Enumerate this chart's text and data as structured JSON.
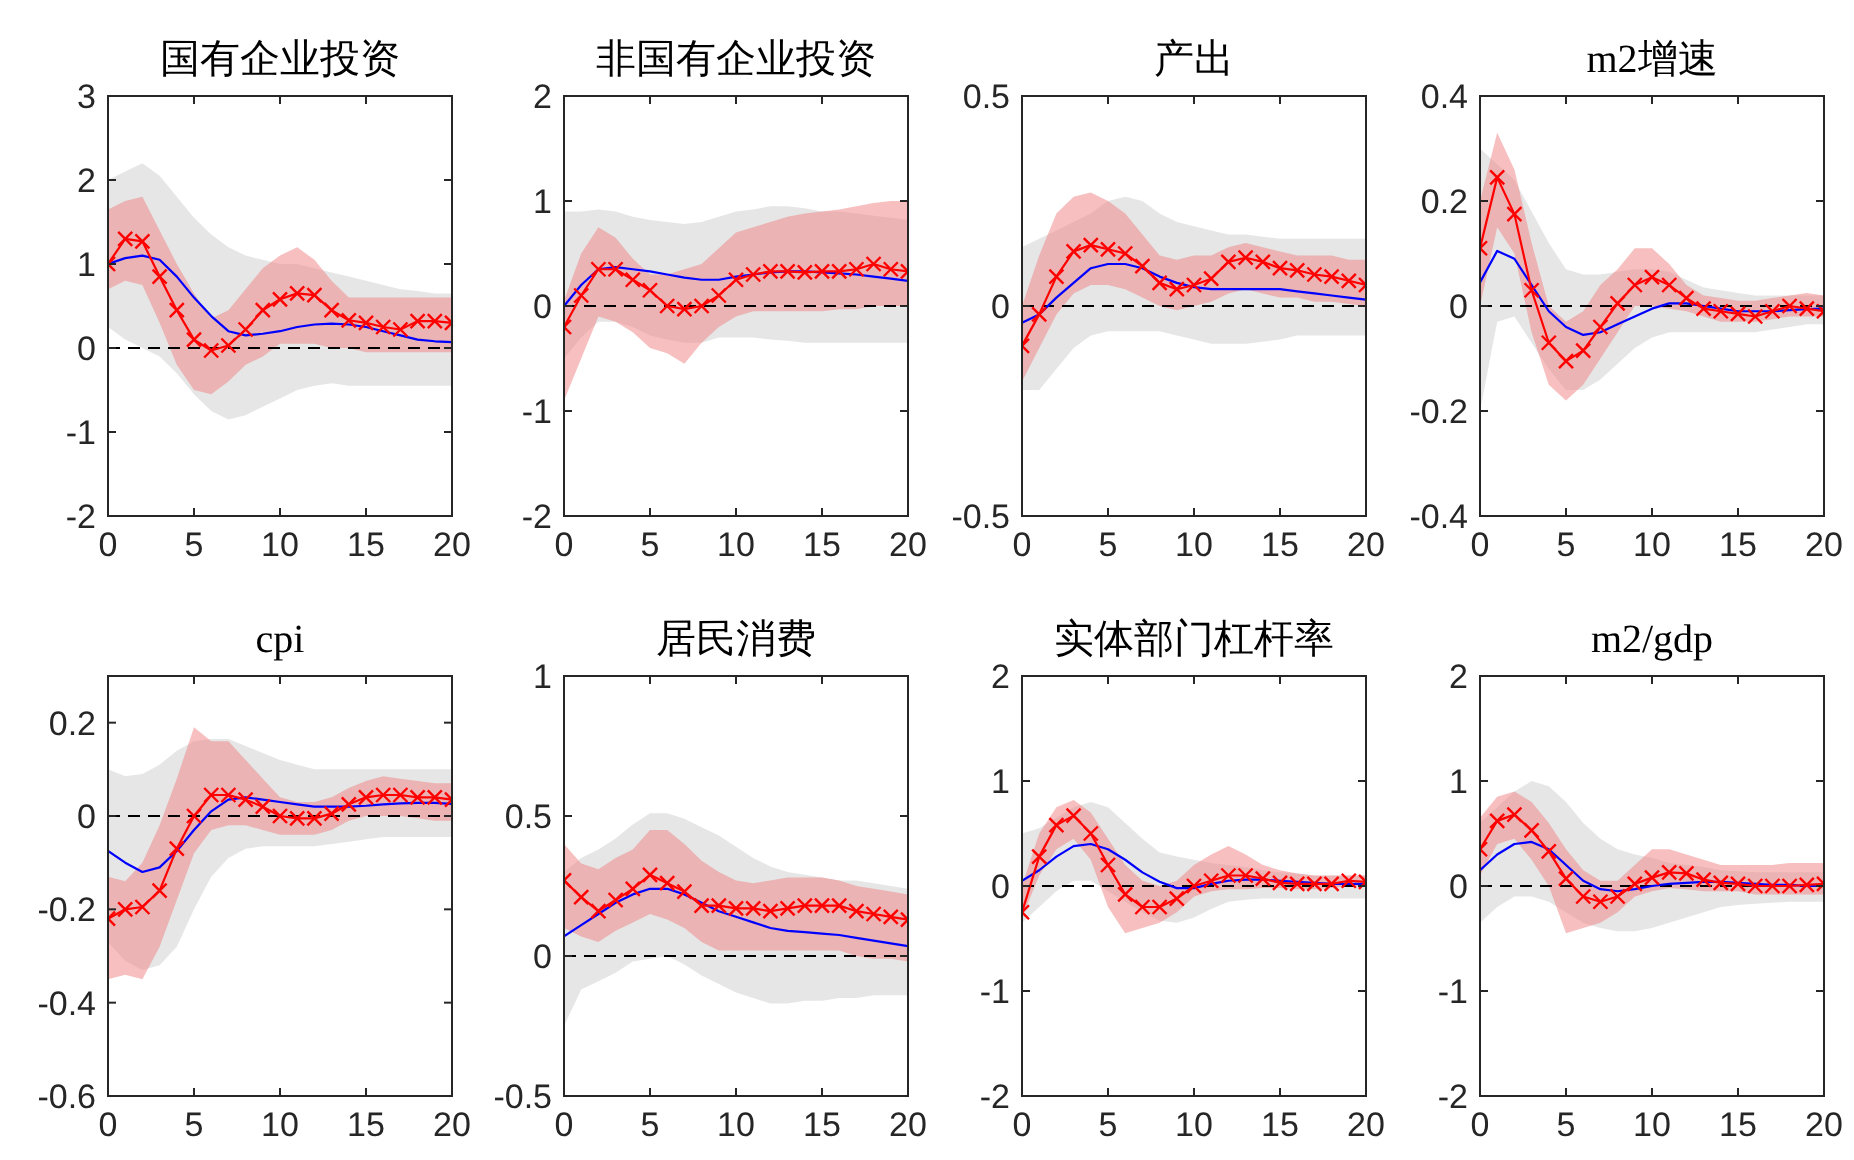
{
  "chart_data": [
    {
      "type": "line",
      "title": "国有企业投资",
      "x": [
        0,
        1,
        2,
        3,
        4,
        5,
        6,
        7,
        8,
        9,
        10,
        11,
        12,
        13,
        14,
        15,
        16,
        17,
        18,
        19,
        20
      ],
      "xlim": [
        0,
        20
      ],
      "xticks": [
        0,
        5,
        10,
        15,
        20
      ],
      "ylim": [
        -2,
        3
      ],
      "yticks": [
        -2,
        -1,
        0,
        1,
        2,
        3
      ],
      "grid": false,
      "ref_lines": [
        {
          "axis": "y",
          "value": 0,
          "color": "#000000",
          "line_style": "dashed"
        }
      ],
      "series": [
        {
          "color": "#0000ff",
          "marker": "none",
          "values": [
            1.0,
            1.07,
            1.1,
            1.05,
            0.85,
            0.6,
            0.38,
            0.2,
            0.15,
            0.17,
            0.2,
            0.25,
            0.28,
            0.29,
            0.28,
            0.25,
            0.2,
            0.15,
            0.1,
            0.08,
            0.07
          ],
          "upper": [
            2.0,
            2.1,
            2.2,
            2.05,
            1.8,
            1.55,
            1.35,
            1.2,
            1.1,
            1.05,
            1.0,
            1.0,
            0.95,
            0.9,
            0.85,
            0.8,
            0.75,
            0.7,
            0.68,
            0.65,
            0.65
          ],
          "lower": [
            0.25,
            0.1,
            0.0,
            -0.1,
            -0.3,
            -0.55,
            -0.75,
            -0.85,
            -0.8,
            -0.7,
            -0.6,
            -0.5,
            -0.45,
            -0.42,
            -0.45,
            -0.45,
            -0.45,
            -0.45,
            -0.45,
            -0.45,
            -0.45
          ]
        },
        {
          "color": "#ff0000",
          "marker": "cross",
          "values": [
            1.0,
            1.3,
            1.27,
            0.85,
            0.45,
            0.1,
            -0.03,
            0.03,
            0.22,
            0.45,
            0.58,
            0.65,
            0.63,
            0.45,
            0.33,
            0.3,
            0.25,
            0.22,
            0.32,
            0.32,
            0.3
          ],
          "upper": [
            1.65,
            1.75,
            1.8,
            1.4,
            1.0,
            0.65,
            0.35,
            0.45,
            0.7,
            0.95,
            1.1,
            1.2,
            1.05,
            0.8,
            0.6,
            0.6,
            0.6,
            0.6,
            0.6,
            0.6,
            0.6
          ],
          "lower": [
            0.7,
            0.8,
            0.75,
            0.3,
            -0.2,
            -0.5,
            -0.55,
            -0.4,
            -0.2,
            -0.1,
            0.05,
            0.05,
            0.05,
            0.0,
            0.0,
            -0.05,
            -0.05,
            -0.05,
            -0.05,
            -0.05,
            -0.05
          ]
        }
      ]
    },
    {
      "type": "line",
      "title": "非国有企业投资",
      "x": [
        0,
        1,
        2,
        3,
        4,
        5,
        6,
        7,
        8,
        9,
        10,
        11,
        12,
        13,
        14,
        15,
        16,
        17,
        18,
        19,
        20
      ],
      "xlim": [
        0,
        20
      ],
      "xticks": [
        0,
        5,
        10,
        15,
        20
      ],
      "ylim": [
        -2,
        2
      ],
      "yticks": [
        -2,
        -1,
        0,
        1,
        2
      ],
      "grid": false,
      "ref_lines": [
        {
          "axis": "y",
          "value": 0,
          "color": "#000000",
          "line_style": "dashed"
        }
      ],
      "series": [
        {
          "color": "#0000ff",
          "marker": "none",
          "values": [
            0.0,
            0.2,
            0.35,
            0.37,
            0.35,
            0.33,
            0.3,
            0.27,
            0.25,
            0.25,
            0.28,
            0.3,
            0.32,
            0.33,
            0.33,
            0.32,
            0.31,
            0.3,
            0.28,
            0.26,
            0.24
          ],
          "upper": [
            0.9,
            0.9,
            0.92,
            0.9,
            0.85,
            0.82,
            0.8,
            0.78,
            0.8,
            0.85,
            0.9,
            0.92,
            0.95,
            0.95,
            0.93,
            0.9,
            0.9,
            0.88,
            0.86,
            0.84,
            0.82
          ],
          "lower": [
            -0.5,
            -0.3,
            -0.15,
            -0.15,
            -0.2,
            -0.28,
            -0.32,
            -0.35,
            -0.35,
            -0.3,
            -0.3,
            -0.3,
            -0.32,
            -0.33,
            -0.35,
            -0.35,
            -0.35,
            -0.35,
            -0.35,
            -0.35,
            -0.35
          ]
        },
        {
          "color": "#ff0000",
          "marker": "cross",
          "values": [
            -0.2,
            0.1,
            0.35,
            0.35,
            0.25,
            0.15,
            0.0,
            -0.03,
            0.0,
            0.1,
            0.25,
            0.3,
            0.33,
            0.33,
            0.32,
            0.33,
            0.33,
            0.35,
            0.4,
            0.35,
            0.33
          ],
          "upper": [
            0.05,
            0.5,
            0.75,
            0.65,
            0.45,
            0.3,
            0.3,
            0.35,
            0.4,
            0.55,
            0.7,
            0.75,
            0.8,
            0.85,
            0.88,
            0.9,
            0.92,
            0.95,
            0.98,
            1.0,
            1.0
          ],
          "lower": [
            -0.9,
            -0.5,
            -0.1,
            -0.15,
            -0.25,
            -0.4,
            -0.45,
            -0.55,
            -0.35,
            -0.2,
            -0.1,
            -0.05,
            -0.05,
            -0.05,
            -0.05,
            -0.05,
            -0.03,
            -0.03,
            0.0,
            0.0,
            0.0
          ]
        }
      ]
    },
    {
      "type": "line",
      "title": "产出",
      "x": [
        0,
        1,
        2,
        3,
        4,
        5,
        6,
        7,
        8,
        9,
        10,
        11,
        12,
        13,
        14,
        15,
        16,
        17,
        18,
        19,
        20
      ],
      "xlim": [
        0,
        20
      ],
      "xticks": [
        0,
        5,
        10,
        15,
        20
      ],
      "ylim": [
        -0.5,
        0.5
      ],
      "yticks": [
        -0.5,
        0,
        0.5
      ],
      "grid": false,
      "ref_lines": [
        {
          "axis": "y",
          "value": 0,
          "color": "#000000",
          "line_style": "dashed"
        }
      ],
      "series": [
        {
          "color": "#0000ff",
          "marker": "none",
          "values": [
            -0.04,
            -0.02,
            0.02,
            0.055,
            0.09,
            0.1,
            0.1,
            0.09,
            0.07,
            0.055,
            0.045,
            0.04,
            0.04,
            0.04,
            0.04,
            0.04,
            0.035,
            0.03,
            0.025,
            0.02,
            0.015
          ],
          "upper": [
            0.14,
            0.16,
            0.18,
            0.2,
            0.22,
            0.25,
            0.26,
            0.25,
            0.22,
            0.2,
            0.19,
            0.18,
            0.17,
            0.17,
            0.165,
            0.16,
            0.16,
            0.16,
            0.16,
            0.16,
            0.16
          ],
          "lower": [
            -0.2,
            -0.2,
            -0.15,
            -0.1,
            -0.07,
            -0.06,
            -0.06,
            -0.06,
            -0.06,
            -0.07,
            -0.08,
            -0.09,
            -0.09,
            -0.09,
            -0.085,
            -0.08,
            -0.07,
            -0.07,
            -0.07,
            -0.07,
            -0.07
          ]
        },
        {
          "color": "#ff0000",
          "marker": "cross",
          "values": [
            -0.095,
            -0.02,
            0.07,
            0.13,
            0.145,
            0.135,
            0.125,
            0.095,
            0.055,
            0.04,
            0.05,
            0.065,
            0.105,
            0.115,
            0.105,
            0.09,
            0.085,
            0.075,
            0.07,
            0.06,
            0.05
          ],
          "upper": [
            0.0,
            0.12,
            0.22,
            0.26,
            0.27,
            0.25,
            0.22,
            0.17,
            0.12,
            0.11,
            0.12,
            0.12,
            0.14,
            0.15,
            0.14,
            0.13,
            0.12,
            0.12,
            0.12,
            0.11,
            0.11
          ],
          "lower": [
            -0.18,
            -0.1,
            -0.02,
            0.03,
            0.05,
            0.05,
            0.04,
            0.02,
            0.0,
            -0.01,
            0.0,
            0.01,
            0.03,
            0.04,
            0.03,
            0.02,
            0.02,
            0.01,
            0.01,
            0.005,
            0.0
          ]
        }
      ]
    },
    {
      "type": "line",
      "title": "m2增速",
      "x": [
        0,
        1,
        2,
        3,
        4,
        5,
        6,
        7,
        8,
        9,
        10,
        11,
        12,
        13,
        14,
        15,
        16,
        17,
        18,
        19,
        20
      ],
      "xlim": [
        0,
        20
      ],
      "xticks": [
        0,
        5,
        10,
        15,
        20
      ],
      "ylim": [
        -0.4,
        0.4
      ],
      "yticks": [
        -0.4,
        -0.2,
        0,
        0.2,
        0.4
      ],
      "grid": false,
      "ref_lines": [
        {
          "axis": "y",
          "value": 0,
          "color": "#000000",
          "line_style": "dashed"
        }
      ],
      "series": [
        {
          "color": "#0000ff",
          "marker": "none",
          "values": [
            0.045,
            0.105,
            0.09,
            0.04,
            -0.01,
            -0.04,
            -0.055,
            -0.05,
            -0.035,
            -0.02,
            -0.005,
            0.005,
            0.005,
            0.0,
            -0.005,
            -0.01,
            -0.01,
            -0.01,
            -0.008,
            -0.006,
            -0.005
          ],
          "upper": [
            0.3,
            0.27,
            0.24,
            0.18,
            0.12,
            0.07,
            0.06,
            0.06,
            0.065,
            0.07,
            0.07,
            0.065,
            0.05,
            0.035,
            0.03,
            0.025,
            0.02,
            0.02,
            0.02,
            0.02,
            0.02
          ],
          "lower": [
            -0.2,
            -0.03,
            -0.02,
            -0.07,
            -0.12,
            -0.16,
            -0.16,
            -0.14,
            -0.11,
            -0.08,
            -0.06,
            -0.05,
            -0.05,
            -0.05,
            -0.05,
            -0.05,
            -0.05,
            -0.045,
            -0.04,
            -0.035,
            -0.035
          ]
        },
        {
          "color": "#ff0000",
          "marker": "cross",
          "values": [
            0.11,
            0.245,
            0.175,
            0.03,
            -0.07,
            -0.105,
            -0.085,
            -0.04,
            0.005,
            0.04,
            0.055,
            0.04,
            0.015,
            -0.005,
            -0.01,
            -0.015,
            -0.02,
            -0.01,
            0.0,
            -0.005,
            -0.01
          ],
          "upper": [
            0.2,
            0.33,
            0.26,
            0.12,
            0.0,
            -0.03,
            -0.01,
            0.04,
            0.07,
            0.11,
            0.11,
            0.08,
            0.04,
            0.02,
            0.015,
            0.01,
            0.01,
            0.015,
            0.02,
            0.025,
            0.02
          ],
          "lower": [
            0.0,
            0.15,
            0.1,
            -0.05,
            -0.15,
            -0.18,
            -0.15,
            -0.1,
            -0.05,
            0.0,
            0.0,
            -0.005,
            -0.01,
            -0.02,
            -0.03,
            -0.03,
            -0.03,
            -0.025,
            -0.02,
            -0.02,
            -0.02
          ]
        }
      ]
    },
    {
      "type": "line",
      "title": "cpi",
      "x": [
        0,
        1,
        2,
        3,
        4,
        5,
        6,
        7,
        8,
        9,
        10,
        11,
        12,
        13,
        14,
        15,
        16,
        17,
        18,
        19,
        20
      ],
      "xlim": [
        0,
        20
      ],
      "xticks": [
        0,
        5,
        10,
        15,
        20
      ],
      "ylim": [
        -0.6,
        0.3
      ],
      "yticks": [
        -0.6,
        -0.4,
        -0.2,
        0,
        0.2
      ],
      "grid": false,
      "ref_lines": [
        {
          "axis": "y",
          "value": 0,
          "color": "#000000",
          "line_style": "dashed"
        }
      ],
      "series": [
        {
          "color": "#0000ff",
          "marker": "none",
          "values": [
            -0.075,
            -0.1,
            -0.12,
            -0.11,
            -0.075,
            -0.03,
            0.01,
            0.035,
            0.04,
            0.035,
            0.03,
            0.025,
            0.02,
            0.02,
            0.02,
            0.022,
            0.025,
            0.027,
            0.028,
            0.028,
            0.026
          ],
          "upper": [
            0.1,
            0.085,
            0.09,
            0.11,
            0.14,
            0.16,
            0.165,
            0.165,
            0.15,
            0.135,
            0.12,
            0.11,
            0.1,
            0.1,
            0.1,
            0.1,
            0.1,
            0.1,
            0.1,
            0.1,
            0.1
          ],
          "lower": [
            -0.27,
            -0.31,
            -0.33,
            -0.32,
            -0.28,
            -0.2,
            -0.13,
            -0.09,
            -0.07,
            -0.065,
            -0.065,
            -0.065,
            -0.065,
            -0.06,
            -0.055,
            -0.05,
            -0.045,
            -0.045,
            -0.045,
            -0.045,
            -0.045
          ]
        },
        {
          "color": "#ff0000",
          "marker": "cross",
          "values": [
            -0.22,
            -0.2,
            -0.195,
            -0.16,
            -0.07,
            0.0,
            0.045,
            0.045,
            0.035,
            0.02,
            0.0,
            -0.005,
            -0.005,
            0.005,
            0.025,
            0.04,
            0.045,
            0.045,
            0.04,
            0.04,
            0.035
          ],
          "upper": [
            -0.13,
            -0.14,
            -0.1,
            -0.02,
            0.08,
            0.19,
            0.16,
            0.16,
            0.12,
            0.08,
            0.04,
            0.03,
            0.03,
            0.04,
            0.06,
            0.075,
            0.085,
            0.08,
            0.075,
            0.07,
            0.07
          ],
          "lower": [
            -0.35,
            -0.34,
            -0.35,
            -0.28,
            -0.18,
            -0.08,
            -0.03,
            -0.02,
            -0.02,
            -0.03,
            -0.04,
            -0.04,
            -0.04,
            -0.03,
            -0.01,
            0.0,
            0.0,
            0.0,
            -0.005,
            -0.01,
            -0.01
          ]
        }
      ]
    },
    {
      "type": "line",
      "title": "居民消费",
      "x": [
        0,
        1,
        2,
        3,
        4,
        5,
        6,
        7,
        8,
        9,
        10,
        11,
        12,
        13,
        14,
        15,
        16,
        17,
        18,
        19,
        20
      ],
      "xlim": [
        0,
        20
      ],
      "xticks": [
        0,
        5,
        10,
        15,
        20
      ],
      "ylim": [
        -0.5,
        1
      ],
      "yticks": [
        -0.5,
        0,
        0.5,
        1
      ],
      "grid": false,
      "ref_lines": [
        {
          "axis": "y",
          "value": 0,
          "color": "#000000",
          "line_style": "dashed"
        }
      ],
      "series": [
        {
          "color": "#0000ff",
          "marker": "none",
          "values": [
            0.07,
            0.11,
            0.15,
            0.19,
            0.22,
            0.24,
            0.24,
            0.22,
            0.19,
            0.16,
            0.14,
            0.12,
            0.1,
            0.09,
            0.085,
            0.08,
            0.075,
            0.065,
            0.055,
            0.045,
            0.035
          ],
          "upper": [
            0.3,
            0.35,
            0.38,
            0.42,
            0.47,
            0.51,
            0.51,
            0.49,
            0.46,
            0.43,
            0.39,
            0.35,
            0.32,
            0.3,
            0.29,
            0.28,
            0.27,
            0.27,
            0.26,
            0.25,
            0.24
          ],
          "lower": [
            -0.25,
            -0.12,
            -0.09,
            -0.06,
            -0.02,
            -0.01,
            0.0,
            -0.03,
            -0.07,
            -0.1,
            -0.13,
            -0.15,
            -0.17,
            -0.17,
            -0.16,
            -0.16,
            -0.15,
            -0.15,
            -0.14,
            -0.14,
            -0.14
          ]
        },
        {
          "color": "#ff0000",
          "marker": "cross",
          "values": [
            0.27,
            0.21,
            0.16,
            0.2,
            0.24,
            0.29,
            0.26,
            0.23,
            0.18,
            0.18,
            0.17,
            0.17,
            0.16,
            0.17,
            0.18,
            0.18,
            0.18,
            0.16,
            0.15,
            0.14,
            0.13
          ],
          "upper": [
            0.4,
            0.33,
            0.31,
            0.35,
            0.38,
            0.45,
            0.45,
            0.4,
            0.34,
            0.3,
            0.27,
            0.26,
            0.27,
            0.28,
            0.28,
            0.28,
            0.27,
            0.25,
            0.24,
            0.23,
            0.22
          ],
          "lower": [
            0.1,
            0.07,
            0.05,
            0.09,
            0.12,
            0.15,
            0.13,
            0.1,
            0.05,
            0.02,
            0.02,
            0.02,
            0.02,
            0.02,
            0.02,
            0.02,
            0.02,
            0.0,
            -0.01,
            -0.01,
            -0.02
          ]
        }
      ]
    },
    {
      "type": "line",
      "title": "实体部门杠杆率",
      "x": [
        0,
        1,
        2,
        3,
        4,
        5,
        6,
        7,
        8,
        9,
        10,
        11,
        12,
        13,
        14,
        15,
        16,
        17,
        18,
        19,
        20
      ],
      "xlim": [
        0,
        20
      ],
      "xticks": [
        0,
        5,
        10,
        15,
        20
      ],
      "ylim": [
        -2,
        2
      ],
      "yticks": [
        -2,
        -1,
        0,
        1,
        2
      ],
      "grid": false,
      "ref_lines": [
        {
          "axis": "y",
          "value": 0,
          "color": "#000000",
          "line_style": "dashed"
        }
      ],
      "series": [
        {
          "color": "#0000ff",
          "marker": "none",
          "values": [
            0.05,
            0.15,
            0.28,
            0.38,
            0.4,
            0.35,
            0.25,
            0.13,
            0.04,
            -0.02,
            -0.02,
            0.02,
            0.05,
            0.06,
            0.06,
            0.05,
            0.04,
            0.03,
            0.02,
            0.02,
            0.02
          ],
          "upper": [
            0.5,
            0.55,
            0.65,
            0.75,
            0.8,
            0.75,
            0.6,
            0.45,
            0.32,
            0.28,
            0.25,
            0.22,
            0.2,
            0.18,
            0.15,
            0.13,
            0.12,
            0.1,
            0.1,
            0.1,
            0.1
          ],
          "lower": [
            -0.35,
            -0.2,
            -0.05,
            0.05,
            0.05,
            -0.05,
            -0.15,
            -0.25,
            -0.33,
            -0.35,
            -0.3,
            -0.22,
            -0.15,
            -0.13,
            -0.12,
            -0.12,
            -0.12,
            -0.12,
            -0.12,
            -0.12,
            -0.12
          ]
        },
        {
          "color": "#ff0000",
          "marker": "cross",
          "values": [
            -0.25,
            0.28,
            0.58,
            0.67,
            0.5,
            0.2,
            -0.08,
            -0.2,
            -0.2,
            -0.12,
            0.0,
            0.05,
            0.1,
            0.1,
            0.07,
            0.03,
            0.02,
            0.02,
            0.02,
            0.05,
            0.04
          ],
          "upper": [
            0.0,
            0.5,
            0.75,
            0.82,
            0.7,
            0.45,
            0.2,
            0.05,
            0.0,
            0.05,
            0.2,
            0.3,
            0.38,
            0.3,
            0.2,
            0.15,
            0.12,
            0.1,
            0.1,
            0.1,
            0.1
          ],
          "lower": [
            -0.3,
            0.1,
            0.35,
            0.45,
            0.25,
            -0.2,
            -0.45,
            -0.4,
            -0.35,
            -0.25,
            -0.1,
            -0.05,
            -0.03,
            -0.03,
            -0.02,
            -0.02,
            -0.03,
            -0.03,
            -0.02,
            0.0,
            0.0
          ]
        }
      ]
    },
    {
      "type": "line",
      "title": "m2/gdp",
      "x": [
        0,
        1,
        2,
        3,
        4,
        5,
        6,
        7,
        8,
        9,
        10,
        11,
        12,
        13,
        14,
        15,
        16,
        17,
        18,
        19,
        20
      ],
      "xlim": [
        0,
        20
      ],
      "xticks": [
        0,
        5,
        10,
        15,
        20
      ],
      "ylim": [
        -2,
        2
      ],
      "yticks": [
        -2,
        -1,
        0,
        1,
        2
      ],
      "grid": false,
      "ref_lines": [
        {
          "axis": "y",
          "value": 0,
          "color": "#000000",
          "line_style": "dashed"
        }
      ],
      "series": [
        {
          "color": "#0000ff",
          "marker": "none",
          "values": [
            0.15,
            0.3,
            0.4,
            0.42,
            0.35,
            0.2,
            0.05,
            -0.03,
            -0.05,
            -0.03,
            0.0,
            0.02,
            0.03,
            0.04,
            0.04,
            0.03,
            0.02,
            0.01,
            0.01,
            0.0,
            0.0
          ],
          "upper": [
            0.6,
            0.75,
            0.9,
            1.0,
            0.95,
            0.8,
            0.6,
            0.45,
            0.35,
            0.3,
            0.27,
            0.22,
            0.2,
            0.18,
            0.15,
            0.14,
            0.13,
            0.13,
            0.13,
            0.13,
            0.13
          ],
          "lower": [
            -0.35,
            -0.2,
            -0.1,
            -0.1,
            -0.15,
            -0.25,
            -0.35,
            -0.4,
            -0.43,
            -0.43,
            -0.4,
            -0.35,
            -0.3,
            -0.25,
            -0.2,
            -0.18,
            -0.17,
            -0.16,
            -0.15,
            -0.15,
            -0.15
          ]
        },
        {
          "color": "#ff0000",
          "marker": "cross",
          "values": [
            0.35,
            0.62,
            0.68,
            0.53,
            0.33,
            0.07,
            -0.1,
            -0.15,
            -0.1,
            0.02,
            0.08,
            0.13,
            0.12,
            0.06,
            0.03,
            0.02,
            0.0,
            0.0,
            0.0,
            0.01,
            0.02
          ],
          "upper": [
            0.65,
            0.85,
            0.9,
            0.8,
            0.6,
            0.35,
            0.15,
            0.05,
            0.05,
            0.2,
            0.35,
            0.35,
            0.3,
            0.25,
            0.2,
            0.2,
            0.2,
            0.2,
            0.22,
            0.22,
            0.22
          ],
          "lower": [
            0.1,
            0.4,
            0.45,
            0.25,
            0.0,
            -0.45,
            -0.4,
            -0.35,
            -0.25,
            -0.1,
            -0.05,
            -0.02,
            -0.03,
            -0.05,
            -0.05,
            -0.05,
            -0.08,
            -0.08,
            -0.08,
            -0.08,
            -0.08
          ]
        }
      ]
    }
  ]
}
